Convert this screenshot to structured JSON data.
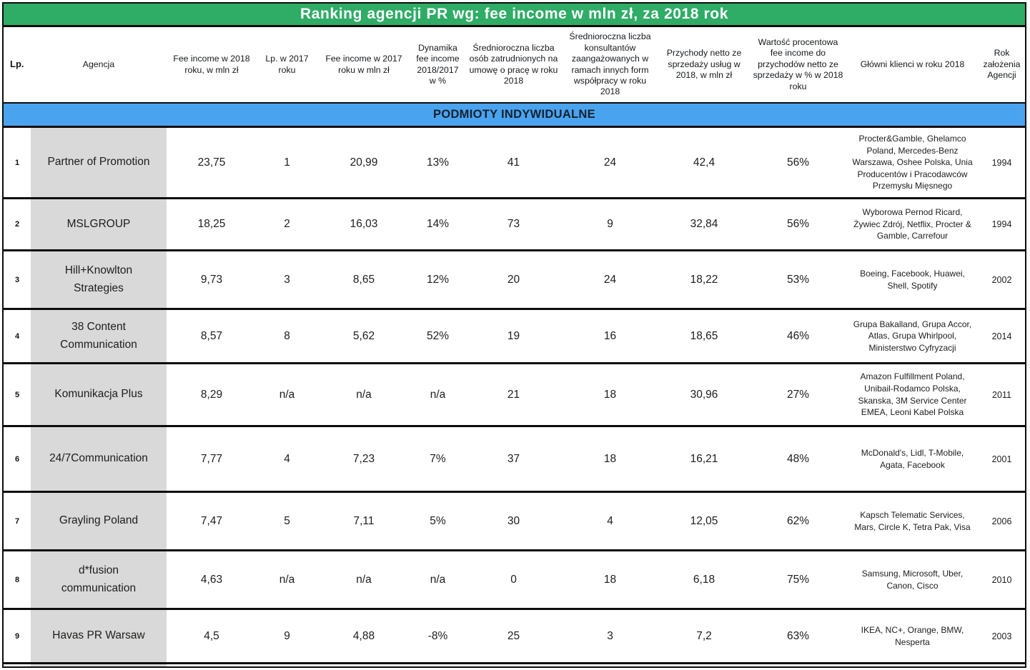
{
  "title": "Ranking agencji PR wg: fee income w mln zł, za 2018 rok",
  "section_header": "PODMIOTY INDYWIDUALNE",
  "colors": {
    "banner_green": "#2fac66",
    "section_blue": "#4aa3ef",
    "agency_column_gray": "#d9d9d9",
    "border_black": "#0d0d0d",
    "title_text": "#ffffff"
  },
  "columns": [
    "Lp.",
    "Agencja",
    "Fee income w 2018 roku, w mln zł",
    "Lp. w 2017 roku",
    "Fee income w 2017 roku w mln zł",
    "Dynamika fee income 2018/2017 w %",
    "Średnioroczna liczba osób zatrudnionych na umowę o pracę w roku 2018",
    "Średnioroczna liczba konsultantów zaangażowanych w ramach innych form współpracy w roku 2018",
    "Przychody netto ze sprzedaży usług w 2018, w mln zł",
    "Wartość procentowa fee income do przychodów netto ze sprzedaży w % w 2018 roku",
    "Główni klienci w roku 2018",
    "Rok założenia Agencji"
  ],
  "rows": [
    {
      "lp": "1",
      "agency": "Partner of Promotion",
      "fee_2018": "23,75",
      "lp_2017": "1",
      "fee_2017": "20,99",
      "dynamics": "13%",
      "employees": "41",
      "consultants": "24",
      "revenue": "42,4",
      "fee_pct": "56%",
      "clients": "Procter&Gamble, Ghelamco Poland, Mercedes-Benz Warszawa, Oshee Polska, Unia Producentów i Pracodawców Przemysłu Mięsnego",
      "founded": "1994"
    },
    {
      "lp": "2",
      "agency": "MSLGROUP",
      "fee_2018": "18,25",
      "lp_2017": "2",
      "fee_2017": "16,03",
      "dynamics": "14%",
      "employees": "73",
      "consultants": "9",
      "revenue": "32,84",
      "fee_pct": "56%",
      "clients": "Wyborowa Pernod Ricard, Żywiec Zdrój, Netflix, Procter & Gamble, Carrefour",
      "founded": "1994"
    },
    {
      "lp": "3",
      "agency": "Hill+Knowlton Strategies",
      "fee_2018": "9,73",
      "lp_2017": "3",
      "fee_2017": "8,65",
      "dynamics": "12%",
      "employees": "20",
      "consultants": "24",
      "revenue": "18,22",
      "fee_pct": "53%",
      "clients": "Boeing, Facebook, Huawei, Shell, Spotify",
      "founded": "2002"
    },
    {
      "lp": "4",
      "agency": "38 Content Communication",
      "fee_2018": "8,57",
      "lp_2017": "8",
      "fee_2017": "5,62",
      "dynamics": "52%",
      "employees": "19",
      "consultants": "16",
      "revenue": "18,65",
      "fee_pct": "46%",
      "clients": "Grupa Bakalland, Grupa Accor, Atlas, Grupa Whirlpool, Ministerstwo Cyfryzacji",
      "founded": "2014"
    },
    {
      "lp": "5",
      "agency": "Komunikacja Plus",
      "fee_2018": "8,29",
      "lp_2017": "n/a",
      "fee_2017": "n/a",
      "dynamics": "n/a",
      "employees": "21",
      "consultants": "18",
      "revenue": "30,96",
      "fee_pct": "27%",
      "clients": "Amazon Fulfillment Poland, Unibail-Rodamco Polska, Skanska, 3M Service Center EMEA, Leoni Kabel Polska",
      "founded": "2011"
    },
    {
      "lp": "6",
      "agency": "24/7Communication",
      "fee_2018": "7,77",
      "lp_2017": "4",
      "fee_2017": "7,23",
      "dynamics": "7%",
      "employees": "37",
      "consultants": "18",
      "revenue": "16,21",
      "fee_pct": "48%",
      "clients": "McDonald's, Lidl, T-Mobile, Agata, Facebook",
      "founded": "2001"
    },
    {
      "lp": "7",
      "agency": "Grayling Poland",
      "fee_2018": "7,47",
      "lp_2017": "5",
      "fee_2017": "7,11",
      "dynamics": "5%",
      "employees": "30",
      "consultants": "4",
      "revenue": "12,05",
      "fee_pct": "62%",
      "clients": "Kapsch Telematic Services, Mars, Circle K, Tetra Pak, Visa",
      "founded": "2006"
    },
    {
      "lp": "8",
      "agency": "d*fusion communication",
      "fee_2018": "4,63",
      "lp_2017": "n/a",
      "fee_2017": "n/a",
      "dynamics": "n/a",
      "employees": "0",
      "consultants": "18",
      "revenue": "6,18",
      "fee_pct": "75%",
      "clients": "Samsung, Microsoft, Uber, Canon, Cisco",
      "founded": "2010"
    },
    {
      "lp": "9",
      "agency": "Havas PR Warsaw",
      "fee_2018": "4,5",
      "lp_2017": "9",
      "fee_2017": "4,88",
      "dynamics": "-8%",
      "employees": "25",
      "consultants": "3",
      "revenue": "7,2",
      "fee_pct": "63%",
      "clients": "IKEA, NC+, Orange, BMW, Nesperta",
      "founded": "2003"
    }
  ]
}
